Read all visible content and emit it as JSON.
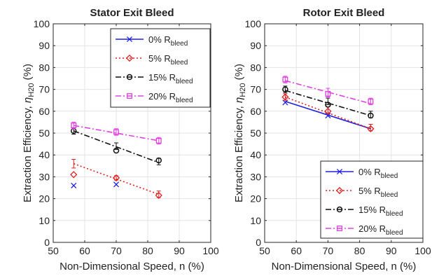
{
  "chart_data": [
    {
      "type": "line",
      "title": "Stator Exit Bleed",
      "xlabel": "Non-Dimensional Speed, n (%)",
      "ylabel_main": "Extraction Efficiency, ",
      "ylabel_symbol": "η",
      "ylabel_sub": "H20",
      "ylabel_unit": " (%)",
      "xlim": [
        50,
        100
      ],
      "ylim": [
        0,
        100
      ],
      "x_ticks": [
        "50",
        "60",
        "70",
        "80",
        "90",
        "100"
      ],
      "y_ticks": [
        "0",
        "10",
        "20",
        "30",
        "40",
        "50",
        "60",
        "70",
        "80",
        "90",
        "100"
      ],
      "grid": true,
      "legend_position": "top-right",
      "series": [
        {
          "name_main": "0% R",
          "name_sub": "bleed",
          "color": "#2020e0",
          "marker": "x",
          "dash": "solid",
          "points": [
            [
              56.5,
              26.0
            ],
            [
              70,
              26.5
            ]
          ],
          "line": null,
          "errors": []
        },
        {
          "name_main": "5% R",
          "name_sub": "bleed",
          "color": "#e02020",
          "marker": "diamond",
          "dash": "dot",
          "points": [
            [
              56.5,
              31.0
            ],
            [
              70,
              29.5
            ],
            [
              83.5,
              21.5
            ]
          ],
          "line": [
            [
              56.5,
              36.0
            ],
            [
              83.5,
              22.0
            ]
          ],
          "errors": [
            [
              56.5,
              36.0,
              2.0
            ],
            [
              70,
              29.5,
              1.0
            ],
            [
              83.5,
              22.0,
              1.5
            ]
          ]
        },
        {
          "name_main": "15% R",
          "name_sub": "bleed",
          "color": "#111111",
          "marker": "circle",
          "dash": "dashdot",
          "points": [
            [
              56.5,
              51.0
            ],
            [
              70,
              42.0
            ],
            [
              83.5,
              37.5
            ]
          ],
          "line": [
            [
              56.5,
              51.0
            ],
            [
              83.5,
              36.5
            ]
          ],
          "errors": [
            [
              56.5,
              51.0,
              1.5
            ],
            [
              70,
              44.0,
              1.5
            ],
            [
              83.5,
              37.0,
              1.5
            ]
          ]
        },
        {
          "name_main": "20% R",
          "name_sub": "bleed",
          "color": "#e040e0",
          "marker": "square",
          "dash": "dashdot",
          "points": [
            [
              56.5,
              53.5
            ],
            [
              70,
              50.5
            ],
            [
              83.5,
              46.5
            ]
          ],
          "line": [
            [
              56.5,
              53.5
            ],
            [
              83.5,
              46.5
            ]
          ],
          "errors": [
            [
              56.5,
              53.5,
              1.5
            ],
            [
              70,
              50.5,
              1.5
            ],
            [
              83.5,
              46.5,
              1.5
            ]
          ]
        }
      ]
    },
    {
      "type": "line",
      "title": "Rotor Exit Bleed",
      "xlabel": "Non-Dimensional Speed, n (%)",
      "ylabel_main": "Extraction Efficiency, ",
      "ylabel_symbol": "η",
      "ylabel_sub": "H20",
      "ylabel_unit": " (%)",
      "xlim": [
        50,
        100
      ],
      "ylim": [
        0,
        100
      ],
      "x_ticks": [
        "50",
        "60",
        "70",
        "80",
        "90",
        "100"
      ],
      "y_ticks": [
        "0",
        "10",
        "20",
        "30",
        "40",
        "50",
        "60",
        "70",
        "80",
        "90",
        "100"
      ],
      "grid": true,
      "legend_position": "bottom-right",
      "series": [
        {
          "name_main": "0% R",
          "name_sub": "bleed",
          "color": "#2020e0",
          "marker": "x",
          "dash": "solid",
          "points": [
            [
              56.5,
              64.0
            ],
            [
              70,
              58.0
            ]
          ],
          "line": [
            [
              56.5,
              64.5
            ],
            [
              83.5,
              52.0
            ]
          ],
          "errors": []
        },
        {
          "name_main": "5% R",
          "name_sub": "bleed",
          "color": "#e02020",
          "marker": "diamond",
          "dash": "dot",
          "points": [
            [
              56.5,
              66.5
            ],
            [
              70,
              60.0
            ],
            [
              83.5,
              52.0
            ]
          ],
          "line": [
            [
              56.5,
              66.5
            ],
            [
              83.5,
              52.0
            ]
          ],
          "errors": [
            [
              56.5,
              66.5,
              1.5
            ],
            [
              70,
              60.5,
              1.5
            ],
            [
              83.5,
              52.5,
              1.5
            ]
          ]
        },
        {
          "name_main": "15% R",
          "name_sub": "bleed",
          "color": "#111111",
          "marker": "circle",
          "dash": "dashdot",
          "points": [
            [
              56.5,
              70.0
            ],
            [
              70,
              63.0
            ],
            [
              83.5,
              58.0
            ]
          ],
          "line": [
            [
              56.5,
              69.5
            ],
            [
              83.5,
              58.0
            ]
          ],
          "errors": [
            [
              56.5,
              70.0,
              1.5
            ],
            [
              70,
              64.5,
              1.5
            ],
            [
              83.5,
              58.5,
              1.5
            ]
          ]
        },
        {
          "name_main": "20% R",
          "name_sub": "bleed",
          "color": "#e040e0",
          "marker": "square",
          "dash": "dashdot",
          "points": [
            [
              56.5,
              74.5
            ],
            [
              70,
              68.0
            ],
            [
              83.5,
              64.5
            ]
          ],
          "line": [
            [
              56.5,
              74.0
            ],
            [
              83.5,
              63.5
            ]
          ],
          "errors": [
            [
              56.5,
              74.5,
              1.5
            ],
            [
              70,
              68.5,
              2.0
            ],
            [
              83.5,
              64.5,
              1.5
            ]
          ]
        }
      ]
    }
  ]
}
